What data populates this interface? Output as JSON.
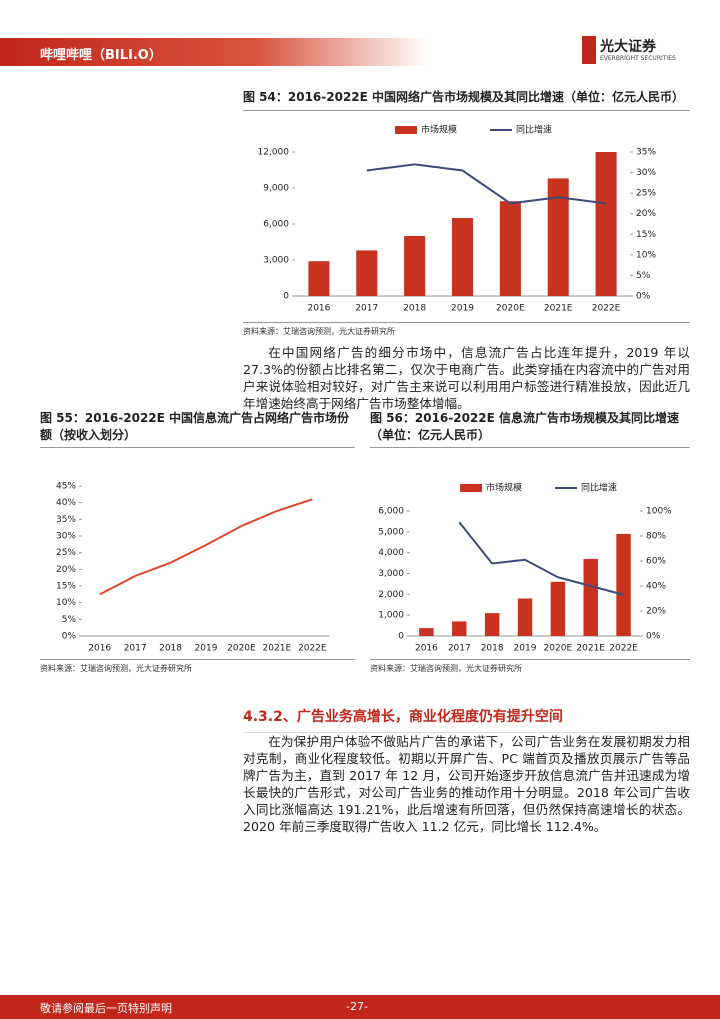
{
  "header": {
    "left": "哔哩哔哩（BILI.O）",
    "logo": "光大证券",
    "logo_sub": "EVERBRIGHT SECURITIES"
  },
  "charts": [
    {
      "type": "bar_line",
      "title": "图 54：2016-2022E 中国网络广告市场规模及其同比增速（单位：亿元人民币）",
      "source": "资料来源：艾瑞咨询预测，光大证券研究所",
      "legend": true,
      "categories": [
        "2016",
        "2017",
        "2018",
        "2019",
        "2020E",
        "2021E",
        "2022E"
      ],
      "series": [
        {
          "name": "市场规模",
          "type": "bar",
          "color": "#c8321e",
          "values": [
            2900,
            3800,
            5000,
            6500,
            7900,
            9800,
            12000
          ]
        },
        {
          "name": "同比增速",
          "type": "line",
          "axis": "y2",
          "color": "#3f4a78",
          "values": [
            null,
            30.5,
            32,
            30.5,
            22.5,
            24,
            22.5
          ]
        }
      ],
      "ylim": [
        0,
        12000
      ],
      "yticks": [
        0,
        {
          "value": 3000,
          "label": "3,000"
        },
        {
          "value": 6000,
          "label": "6,000"
        },
        {
          "value": 9000,
          "label": "9,000"
        },
        {
          "value": 12000,
          "label": "12,000"
        }
      ],
      "y2lim": [
        0,
        35
      ],
      "y2ticks": [
        {
          "value": 0,
          "label": "0%"
        },
        {
          "value": 5,
          "label": "5%"
        },
        {
          "value": 10,
          "label": "10%"
        },
        {
          "value": 15,
          "label": "15%"
        },
        {
          "value": 20,
          "label": "20%"
        },
        {
          "value": 25,
          "label": "25%"
        },
        {
          "value": 30,
          "label": "30%"
        },
        {
          "value": 35,
          "label": "35%"
        }
      ]
    },
    {
      "type": "line",
      "title": "图 55：2016-2022E 中国信息流广告占网络广告市场份额（按收入划分）",
      "source": "资料来源：艾瑞咨询预测，光大证券研究所",
      "legend": false,
      "categories": [
        "2016",
        "2017",
        "2018",
        "2019",
        "2020E",
        "2021E",
        "2022E"
      ],
      "series": [
        {
          "type": "line",
          "color": "#e0462c",
          "values": [
            12.5,
            18,
            22,
            27.3,
            33,
            37.5,
            41
          ]
        }
      ],
      "ylim": [
        0,
        45
      ],
      "yticks": [
        {
          "value": 0,
          "label": "0%"
        },
        {
          "value": 5,
          "label": "5%"
        },
        {
          "value": 10,
          "label": "10%"
        },
        {
          "value": 15,
          "label": "15%"
        },
        {
          "value": 20,
          "label": "20%"
        },
        {
          "value": 25,
          "label": "25%"
        },
        {
          "value": 30,
          "label": "30%"
        },
        {
          "value": 35,
          "label": "35%"
        },
        {
          "value": 40,
          "label": "40%"
        },
        {
          "value": 45,
          "label": "45%"
        }
      ]
    },
    {
      "type": "bar_line",
      "title": "图 56：2016-2022E 信息流广告市场规模及其同比增速（单位：亿元人民币）",
      "source": "资料来源：艾瑞咨询预测，光大证券研究所",
      "legend": true,
      "categories": [
        "2016",
        "2017",
        "2018",
        "2019",
        "2020E",
        "2021E",
        "2022E"
      ],
      "series": [
        {
          "name": "市场规模",
          "type": "bar",
          "color": "#c8321e",
          "values": [
            380,
            700,
            1100,
            1800,
            2600,
            3700,
            4900
          ]
        },
        {
          "name": "同比增速",
          "type": "line",
          "axis": "y2",
          "color": "#3f4a78",
          "values": [
            null,
            91,
            58,
            61,
            47,
            40,
            33
          ]
        }
      ],
      "ylim": [
        0,
        6000
      ],
      "yticks": [
        0,
        {
          "value": 1000,
          "label": "1,000"
        },
        {
          "value": 2000,
          "label": "2,000"
        },
        {
          "value": 3000,
          "label": "3,000"
        },
        {
          "value": 4000,
          "label": "4,000"
        },
        {
          "value": 5000,
          "label": "5,000"
        },
        {
          "value": 6000,
          "label": "6,000"
        }
      ],
      "y2lim": [
        0,
        100
      ],
      "y2ticks": [
        {
          "value": 0,
          "label": "0%"
        },
        {
          "value": 20,
          "label": "20%"
        },
        {
          "value": 40,
          "label": "40%"
        },
        {
          "value": 60,
          "label": "60%"
        },
        {
          "value": 80,
          "label": "80%"
        },
        {
          "value": 100,
          "label": "100%"
        }
      ]
    }
  ],
  "paragraphs": [
    "在中国网络广告的细分市场中，信息流广告占比连年提升，2019 年以 27.3%的份额占比排名第二，仅次于电商广告。此类穿插在内容流中的广告对用户来说体验相对较好，对广告主来说可以利用用户标签进行精准投放，因此近几年增速始终高于网络广告市场整体增幅。",
    "在为保护用户体验不做贴片广告的承诺下，公司广告业务在发展初期发力相对克制，商业化程度较低。初期以开屏广告、PC 端首页及播放页展示广告等品牌广告为主，直到 2017 年 12 月，公司开始逐步开放信息流广告并迅速成为增长最快的广告形式，对公司广告业务的推动作用十分明显。2018 年公司广告收入同比涨幅高达 191.21%，此后增速有所回落，但仍然保持高速增长的状态。2020 年前三季度取得广告收入 11.2 亿元，同比增长 112.4%。"
  ],
  "section_heading": "4.3.2、广告业务高增长，商业化程度仍有提升空间",
  "footer": {
    "left": "敬请参阅最后一页特别声明",
    "page": "-27-"
  }
}
